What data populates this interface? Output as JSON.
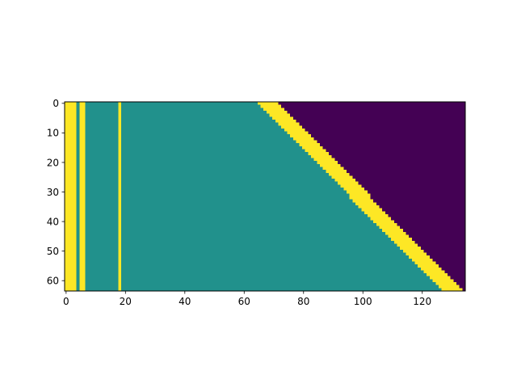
{
  "chart_data": {
    "type": "heatmap",
    "title": "",
    "xlabel": "",
    "ylabel": "",
    "n_cols": 135,
    "n_rows": 64,
    "xlim": [
      -0.5,
      134.5
    ],
    "ylim": [
      63.5,
      -0.5
    ],
    "y_inverted": true,
    "x_ticks": [
      "0",
      "20",
      "40",
      "60",
      "80",
      "100",
      "120"
    ],
    "y_ticks": [
      "0",
      "10",
      "20",
      "30",
      "40",
      "50",
      "60"
    ],
    "grid": false,
    "legend": "none",
    "value_colors": {
      "low": "#440154",
      "mid": "#21918c",
      "high": "#fde725"
    },
    "solid_high_columns": [
      0,
      1,
      2,
      3,
      5,
      6,
      18
    ],
    "diagonal_band": {
      "start_col_at_row_0": 65,
      "end_col_at_row_63": 127,
      "band_width_cols": 7,
      "left_of_band": "mid",
      "band": "high",
      "right_of_band": "low"
    }
  }
}
